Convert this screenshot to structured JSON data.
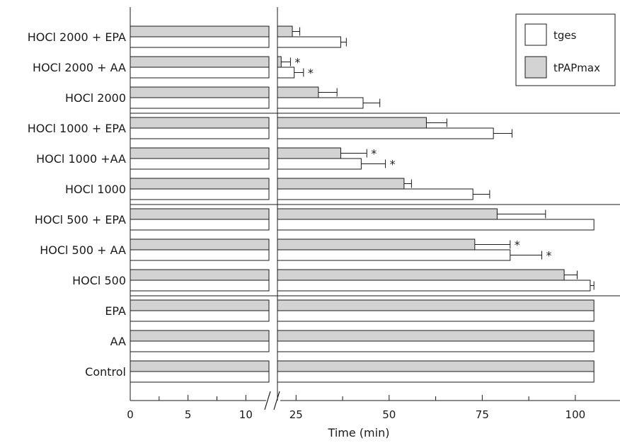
{
  "chart_data": {
    "type": "bar",
    "orientation": "horizontal",
    "categories": [
      "HOCl 2000 + EPA",
      "HOCl 2000 + AA",
      "HOCl 2000",
      "HOCl 1000 + EPA",
      "HOCl 1000 +AA",
      "HOCl 1000",
      "HOCl 500 + EPA",
      "HOCl 500 + AA",
      "HOCl 500",
      "EPA",
      "AA",
      "Control"
    ],
    "series": [
      {
        "name": "tPAPmax",
        "color": "#d3d3d3",
        "values": [
          24,
          21,
          31,
          60,
          37,
          54,
          79,
          73,
          97,
          105,
          105,
          105
        ],
        "errors": [
          2,
          2.5,
          5,
          5.5,
          7,
          2,
          13,
          9.5,
          3.5,
          null,
          null,
          null
        ]
      },
      {
        "name": "tges",
        "color": "#ffffff",
        "values": [
          37,
          24.5,
          43,
          78,
          42.5,
          72.5,
          105,
          82.5,
          104,
          105,
          105,
          105
        ],
        "errors": [
          1.5,
          2.5,
          4.5,
          5,
          6.5,
          4.5,
          null,
          8.5,
          1,
          null,
          null,
          null
        ]
      }
    ],
    "significance": [
      {
        "category": "HOCl 2000 + AA",
        "series": "tPAPmax",
        "marker": "*"
      },
      {
        "category": "HOCl 2000 + AA",
        "series": "tges",
        "marker": "*"
      },
      {
        "category": "HOCl 1000 +AA",
        "series": "tPAPmax",
        "marker": "*"
      },
      {
        "category": "HOCl 1000 +AA",
        "series": "tges",
        "marker": "*"
      },
      {
        "category": "HOCl 500 + AA",
        "series": "tPAPmax",
        "marker": "*"
      },
      {
        "category": "HOCl 500 + AA",
        "series": "tges",
        "marker": "*"
      }
    ],
    "xlabel": "Time (min)",
    "axis_break": {
      "segment1": [
        0,
        12
      ],
      "segment2": [
        20,
        112
      ]
    },
    "xticks_segment1": [
      0,
      5,
      10
    ],
    "xticks_segment1_minor": [
      2.5,
      7.5
    ],
    "xticks_segment2": [
      25,
      50,
      75,
      100
    ],
    "xticks_segment2_minor": [
      37.5,
      62.5,
      87.5
    ],
    "group_separators_after": [
      "HOCl 2000",
      "HOCl 1000",
      "HOCl 500"
    ],
    "legend": {
      "position": "top-right",
      "entries": [
        "tges",
        "tPAPmax"
      ]
    },
    "grid": false
  }
}
